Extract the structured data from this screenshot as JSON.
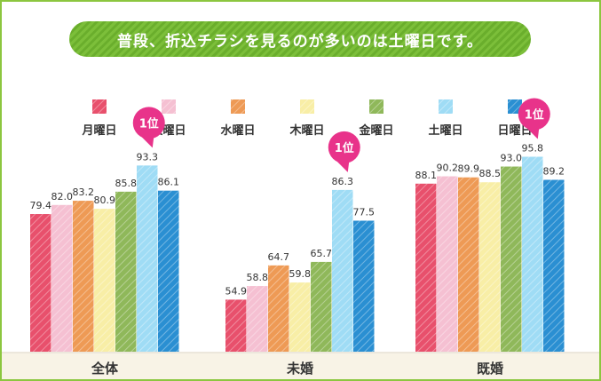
{
  "title": "普段、折込チラシを見るのが多いのは土曜日です。",
  "chart_data": {
    "type": "bar",
    "title": "普段、折込チラシを見るのが多いのは土曜日です。",
    "categories": [
      "全体",
      "未婚",
      "既婚"
    ],
    "series": [
      {
        "name": "月曜日",
        "color": "#e8506c",
        "values": [
          79.4,
          54.9,
          88.1
        ]
      },
      {
        "name": "火曜日",
        "color": "#f5c0d2",
        "values": [
          82.0,
          58.8,
          90.2
        ]
      },
      {
        "name": "水曜日",
        "color": "#ee9a55",
        "values": [
          83.2,
          64.7,
          89.9
        ]
      },
      {
        "name": "木曜日",
        "color": "#f8eea6",
        "values": [
          80.9,
          59.8,
          88.5
        ]
      },
      {
        "name": "金曜日",
        "color": "#8fb85a",
        "values": [
          85.8,
          65.7,
          93.0
        ]
      },
      {
        "name": "土曜日",
        "color": "#9fdcf5",
        "values": [
          93.3,
          86.3,
          95.8
        ]
      },
      {
        "name": "日曜日",
        "color": "#2a8fd2",
        "values": [
          86.1,
          77.5,
          89.2
        ]
      }
    ],
    "ylim": [
      40,
      100
    ],
    "grid": false,
    "legend": "top",
    "annotations": [
      {
        "category": "全体",
        "series": "土曜日",
        "text": "1位"
      },
      {
        "category": "未婚",
        "series": "土曜日",
        "text": "1位"
      },
      {
        "category": "既婚",
        "series": "土曜日",
        "text": "1位"
      }
    ],
    "badge_color": "#e8338a",
    "frame_color": "#8cc63f"
  }
}
